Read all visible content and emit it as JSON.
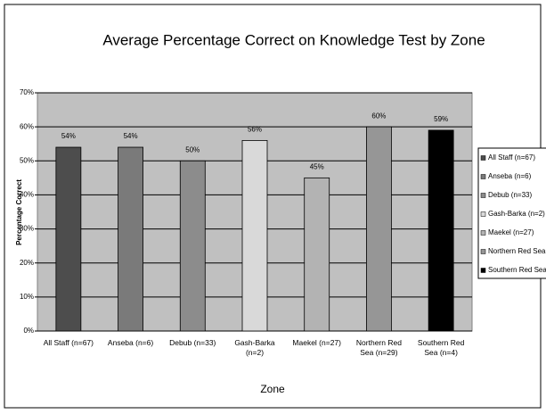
{
  "chart_data": {
    "type": "bar",
    "title": "Average Percentage Correct on Knowledge Test by Zone",
    "x_label": "Zone",
    "y_label": "Percentage Correct",
    "categories": [
      "All Staff (n=67)",
      "Anseba (n=6)",
      "Debub (n=33)",
      "Gash-Barka (n=2)",
      "Maekel (n=27)",
      "Northern Red Sea (n=29)",
      "Southern Red Sea (n=4)"
    ],
    "values": [
      54,
      54,
      50,
      56,
      45,
      60,
      59
    ],
    "value_labels": [
      "54%",
      "54%",
      "50%",
      "56%",
      "45%",
      "60%",
      "59%"
    ],
    "colors": [
      "#4d4d4d",
      "#7a7a7a",
      "#8c8c8c",
      "#d9d9d9",
      "#b3b3b3",
      "#969696",
      "#000000"
    ],
    "ylim": [
      0,
      70
    ],
    "yticks": [
      {
        "value": 0,
        "label": "0%"
      },
      {
        "value": 10,
        "label": "10%"
      },
      {
        "value": 20,
        "label": "20%"
      },
      {
        "value": 30,
        "label": "30%"
      },
      {
        "value": 40,
        "label": "40%"
      },
      {
        "value": 50,
        "label": "50%"
      },
      {
        "value": 60,
        "label": "60%"
      },
      {
        "value": 70,
        "label": "70%"
      }
    ],
    "grid": true,
    "plot_background": "#c0c0c0",
    "legend": "right"
  }
}
